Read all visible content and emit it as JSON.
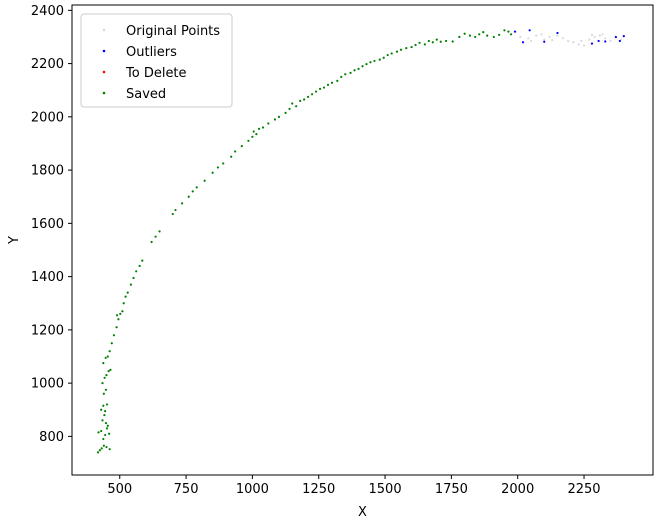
{
  "chart_data": {
    "type": "scatter",
    "title": "",
    "xlabel": "X",
    "ylabel": "Y",
    "xlim": [
      320,
      2510
    ],
    "ylim": [
      655,
      2420
    ],
    "xticks": [
      500,
      750,
      1000,
      1250,
      1500,
      1750,
      2000,
      2250
    ],
    "yticks": [
      800,
      1000,
      1200,
      1400,
      1600,
      1800,
      2000,
      2200,
      2400
    ],
    "legend_position": "top-left",
    "grid": false,
    "series": [
      {
        "name": "Original Points",
        "color": "#d9d9d9",
        "points": [
          [
            2010,
            2300
          ],
          [
            2040,
            2295
          ],
          [
            2070,
            2305
          ],
          [
            2100,
            2290
          ],
          [
            2120,
            2300
          ],
          [
            2150,
            2305
          ],
          [
            2170,
            2295
          ],
          [
            2190,
            2285
          ],
          [
            2210,
            2280
          ],
          [
            2230,
            2272
          ],
          [
            2250,
            2268
          ],
          [
            2270,
            2290
          ],
          [
            2290,
            2300
          ],
          [
            2310,
            2305
          ],
          [
            2330,
            2295
          ],
          [
            2350,
            2285
          ],
          [
            2370,
            2298
          ],
          [
            2390,
            2290
          ],
          [
            2050,
            2285
          ],
          [
            2090,
            2310
          ],
          [
            2130,
            2288
          ],
          [
            2240,
            2285
          ],
          [
            2280,
            2308
          ],
          [
            2320,
            2310
          ]
        ]
      },
      {
        "name": "Outliers",
        "color": "#0000ff",
        "points": [
          [
            1990,
            2320
          ],
          [
            2020,
            2280
          ],
          [
            2045,
            2325
          ],
          [
            2100,
            2282
          ],
          [
            2150,
            2315
          ],
          [
            2280,
            2275
          ],
          [
            2305,
            2285
          ],
          [
            2330,
            2283
          ],
          [
            2370,
            2300
          ],
          [
            2385,
            2285
          ],
          [
            2400,
            2303
          ]
        ]
      },
      {
        "name": "To Delete",
        "color": "#ff0000",
        "points": []
      },
      {
        "name": "Saved",
        "color": "#008000",
        "points": [
          [
            418,
            740
          ],
          [
            425,
            748
          ],
          [
            432,
            755
          ],
          [
            440,
            765
          ],
          [
            450,
            760
          ],
          [
            462,
            752
          ],
          [
            420,
            815
          ],
          [
            430,
            820
          ],
          [
            438,
            790
          ],
          [
            445,
            805
          ],
          [
            452,
            830
          ],
          [
            460,
            810
          ],
          [
            435,
            860
          ],
          [
            442,
            880
          ],
          [
            448,
            850
          ],
          [
            455,
            840
          ],
          [
            430,
            900
          ],
          [
            438,
            915
          ],
          [
            445,
            895
          ],
          [
            452,
            920
          ],
          [
            440,
            960
          ],
          [
            448,
            975
          ],
          [
            435,
            1000
          ],
          [
            443,
            1020
          ],
          [
            450,
            1030
          ],
          [
            458,
            1045
          ],
          [
            465,
            1050
          ],
          [
            438,
            1075
          ],
          [
            447,
            1095
          ],
          [
            455,
            1100
          ],
          [
            462,
            1120
          ],
          [
            470,
            1150
          ],
          [
            478,
            1180
          ],
          [
            488,
            1210
          ],
          [
            495,
            1240
          ],
          [
            502,
            1260
          ],
          [
            510,
            1270
          ],
          [
            490,
            1255
          ],
          [
            515,
            1300
          ],
          [
            522,
            1325
          ],
          [
            530,
            1340
          ],
          [
            542,
            1370
          ],
          [
            552,
            1395
          ],
          [
            562,
            1420
          ],
          [
            575,
            1440
          ],
          [
            585,
            1460
          ],
          [
            620,
            1530
          ],
          [
            635,
            1550
          ],
          [
            650,
            1570
          ],
          [
            700,
            1635
          ],
          [
            710,
            1650
          ],
          [
            735,
            1675
          ],
          [
            760,
            1700
          ],
          [
            775,
            1720
          ],
          [
            790,
            1735
          ],
          [
            820,
            1760
          ],
          [
            850,
            1790
          ],
          [
            870,
            1810
          ],
          [
            890,
            1825
          ],
          [
            920,
            1850
          ],
          [
            935,
            1870
          ],
          [
            960,
            1890
          ],
          [
            985,
            1910
          ],
          [
            1000,
            1925
          ],
          [
            1005,
            1945
          ],
          [
            1015,
            1935
          ],
          [
            1025,
            1955
          ],
          [
            1040,
            1960
          ],
          [
            1060,
            1975
          ],
          [
            1085,
            1990
          ],
          [
            1100,
            2000
          ],
          [
            1125,
            2015
          ],
          [
            1140,
            2030
          ],
          [
            1150,
            2050
          ],
          [
            1165,
            2040
          ],
          [
            1180,
            2060
          ],
          [
            1195,
            2065
          ],
          [
            1210,
            2075
          ],
          [
            1225,
            2085
          ],
          [
            1240,
            2095
          ],
          [
            1255,
            2105
          ],
          [
            1270,
            2110
          ],
          [
            1285,
            2120
          ],
          [
            1300,
            2128
          ],
          [
            1320,
            2135
          ],
          [
            1335,
            2150
          ],
          [
            1350,
            2160
          ],
          [
            1370,
            2165
          ],
          [
            1385,
            2175
          ],
          [
            1400,
            2180
          ],
          [
            1415,
            2190
          ],
          [
            1430,
            2198
          ],
          [
            1445,
            2205
          ],
          [
            1460,
            2210
          ],
          [
            1480,
            2215
          ],
          [
            1495,
            2222
          ],
          [
            1510,
            2232
          ],
          [
            1525,
            2238
          ],
          [
            1545,
            2245
          ],
          [
            1560,
            2252
          ],
          [
            1580,
            2258
          ],
          [
            1600,
            2262
          ],
          [
            1615,
            2270
          ],
          [
            1630,
            2278
          ],
          [
            1650,
            2272
          ],
          [
            1665,
            2285
          ],
          [
            1680,
            2280
          ],
          [
            1695,
            2290
          ],
          [
            1710,
            2282
          ],
          [
            1730,
            2285
          ],
          [
            1755,
            2283
          ],
          [
            1780,
            2300
          ],
          [
            1800,
            2312
          ],
          [
            1820,
            2305
          ],
          [
            1840,
            2300
          ],
          [
            1855,
            2310
          ],
          [
            1870,
            2318
          ],
          [
            1885,
            2305
          ],
          [
            1910,
            2300
          ],
          [
            1930,
            2308
          ],
          [
            1950,
            2325
          ],
          [
            1965,
            2320
          ],
          [
            1975,
            2310
          ]
        ]
      }
    ]
  }
}
